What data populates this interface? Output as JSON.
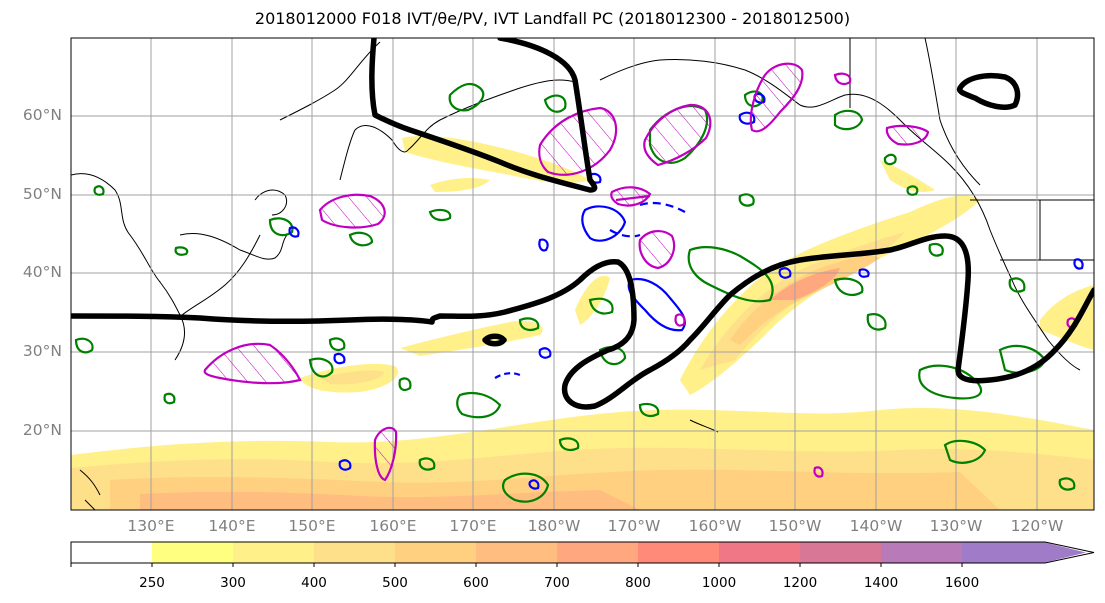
{
  "title": "2018012000 F018 IVT/θe/PV, IVT Landfall PC (2018012300 - 2018012500)",
  "lat_labels": [
    "60°N",
    "50°N",
    "40°N",
    "30°N",
    "20°N"
  ],
  "lon_labels": [
    "130°E",
    "140°E",
    "150°E",
    "160°E",
    "170°E",
    "180°W",
    "170°W",
    "160°W",
    "150°W",
    "140°W",
    "130°W",
    "120°W"
  ],
  "colorbar": {
    "ticks": [
      "250",
      "300",
      "400",
      "500",
      "600",
      "700",
      "800",
      "1000",
      "1200",
      "1400",
      "1600"
    ],
    "colors": [
      "#ffffff",
      "#ffff80",
      "#fff08a",
      "#ffe08a",
      "#ffd080",
      "#ffbd80",
      "#ffa880",
      "#ff8a7a",
      "#f07886",
      "#d87896",
      "#b87ab8",
      "#a07cc8"
    ],
    "extend": "max"
  },
  "map": {
    "projection": "plate-carree",
    "extent": {
      "lon_min": 121,
      "lon_max": 248,
      "lat_min": 10,
      "lat_max": 70
    },
    "grid": true,
    "contour_colors": {
      "landfall_pc": "#000000",
      "theta_e": "#008000",
      "pv": "#0000ff",
      "pv_hatched": "#c000c0"
    }
  }
}
